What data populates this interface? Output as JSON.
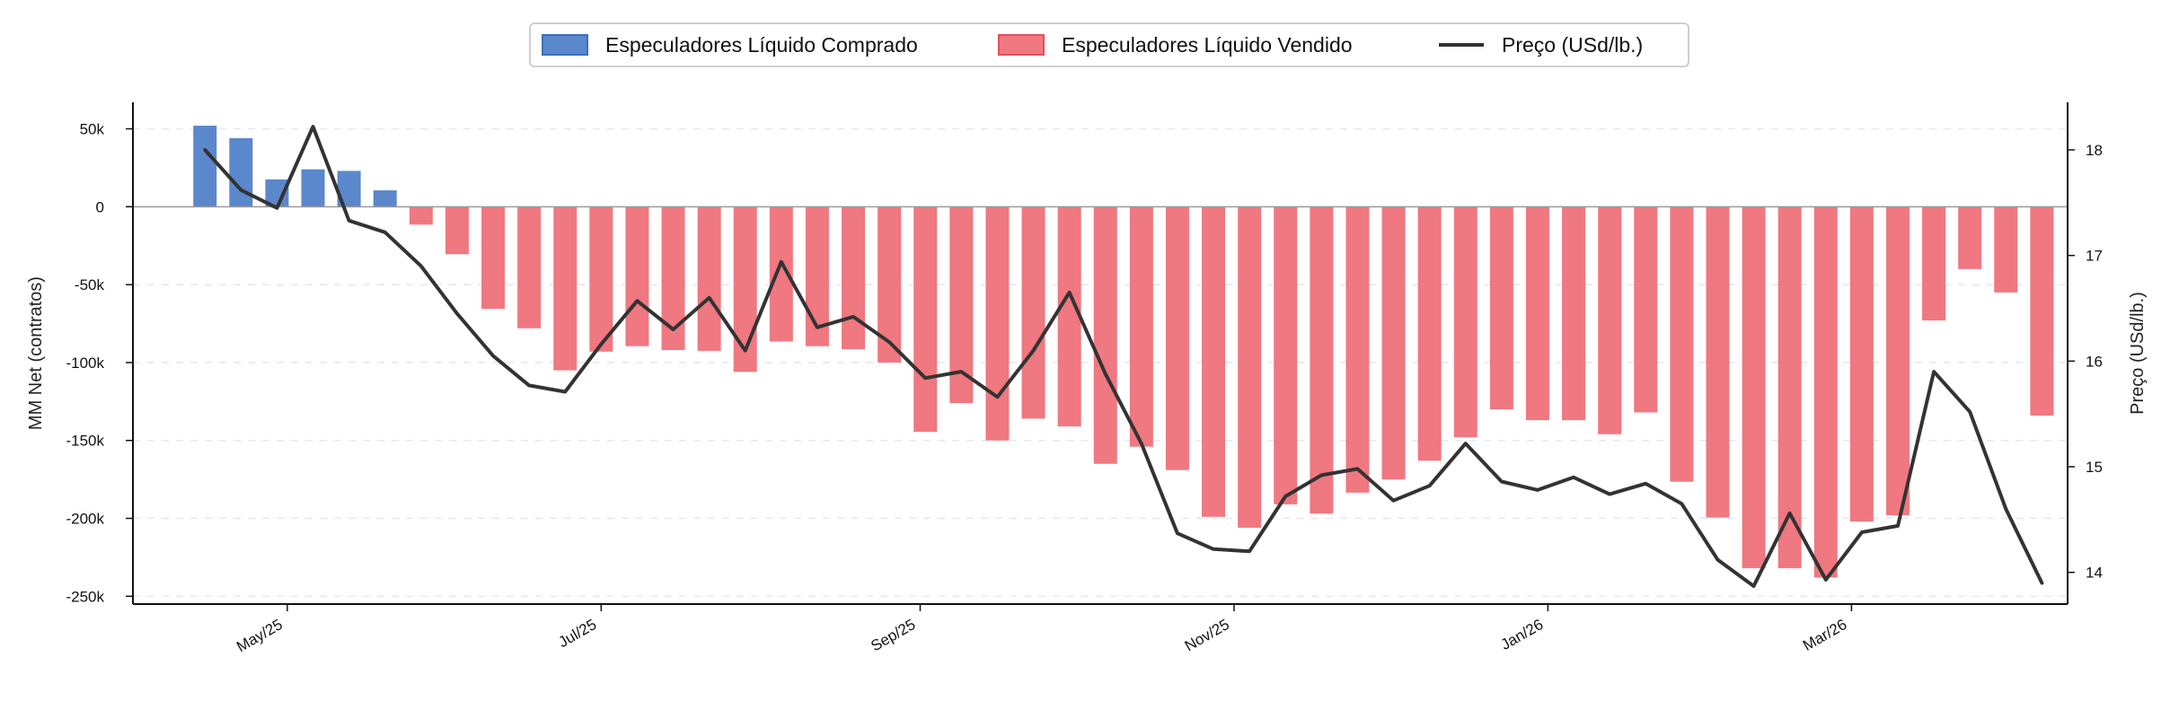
{
  "chart_data": {
    "type": "bar",
    "x": [
      "2025-04-15",
      "2025-04-22",
      "2025-04-29",
      "2025-05-06",
      "2025-05-13",
      "2025-05-20",
      "2025-05-27",
      "2025-06-03",
      "2025-06-10",
      "2025-06-17",
      "2025-06-24",
      "2025-07-01",
      "2025-07-08",
      "2025-07-15",
      "2025-07-22",
      "2025-07-29",
      "2025-08-05",
      "2025-08-12",
      "2025-08-19",
      "2025-08-26",
      "2025-09-02",
      "2025-09-09",
      "2025-09-16",
      "2025-09-23",
      "2025-09-30",
      "2025-10-07",
      "2025-10-14",
      "2025-10-21",
      "2025-10-28",
      "2025-11-04",
      "2025-11-11",
      "2025-11-18",
      "2025-11-25",
      "2025-12-02",
      "2025-12-09",
      "2025-12-16",
      "2025-12-23",
      "2025-12-30",
      "2026-01-06",
      "2026-01-13",
      "2026-01-20",
      "2026-01-27",
      "2026-02-03",
      "2026-02-10",
      "2026-02-17",
      "2026-02-24",
      "2026-03-03",
      "2026-03-10",
      "2026-03-17",
      "2026-03-24",
      "2026-03-31",
      "2026-04-07"
    ],
    "series": [
      {
        "name": "MM Net",
        "values": [
          52000,
          44000,
          17500,
          24000,
          23000,
          10500,
          -11500,
          -30500,
          -65500,
          -78000,
          -105000,
          -93000,
          -89500,
          -92000,
          -92500,
          -106000,
          -86500,
          -89500,
          -91500,
          -100000,
          -144500,
          -126000,
          -150000,
          -136000,
          -141000,
          -165000,
          -154000,
          -169000,
          -199000,
          -206000,
          -191000,
          -197000,
          -183500,
          -175000,
          -163000,
          -148000,
          -130000,
          -137000,
          -137000,
          -146000,
          -132000,
          -176500,
          -199500,
          -232000,
          -232000,
          -238000,
          -202000,
          -198000,
          -73000,
          -40000,
          -55000,
          -134000
        ]
      },
      {
        "name": "Preço (USd/lb.)",
        "axis": "right",
        "values": [
          18.0,
          17.62,
          17.45,
          18.22,
          17.33,
          17.22,
          16.9,
          16.45,
          16.05,
          15.77,
          15.71,
          16.16,
          16.57,
          16.3,
          16.6,
          16.1,
          16.94,
          16.32,
          16.42,
          16.18,
          15.84,
          15.9,
          15.66,
          16.1,
          16.65,
          15.88,
          15.22,
          14.37,
          14.22,
          14.2,
          14.72,
          14.92,
          14.98,
          14.68,
          14.82,
          15.22,
          14.86,
          14.78,
          14.9,
          14.74,
          14.84,
          14.65,
          14.12,
          13.87,
          14.56,
          13.93,
          14.38,
          14.44,
          15.9,
          15.52,
          14.6,
          13.9
        ]
      }
    ],
    "legend": {
      "position": "top-center",
      "items": [
        {
          "label": "Especuladores Líquido Comprado",
          "type": "bar",
          "color": "#5B87CC"
        },
        {
          "label": "Especuladores Líquido Vendido",
          "type": "bar",
          "color": "#F07880"
        },
        {
          "label": "Preço (USd/lb.)",
          "type": "line",
          "color": "#333333"
        }
      ]
    },
    "colors": {
      "long": "#5B87CC",
      "short": "#F07880",
      "price": "#333333"
    },
    "ylabel": "MM Net (contratos)",
    "ylabel_right": "Preço (USd/lb.)",
    "ylim": [
      -255000,
      67000
    ],
    "ylim_right": [
      13.7,
      18.45
    ],
    "yticks": [
      {
        "value": 50000,
        "label": "50k"
      },
      {
        "value": 0,
        "label": "0"
      },
      {
        "value": -50000,
        "label": "-50k"
      },
      {
        "value": -100000,
        "label": "-100k"
      },
      {
        "value": -150000,
        "label": "-150k"
      },
      {
        "value": -200000,
        "label": "-200k"
      },
      {
        "value": -250000,
        "label": "-250k"
      }
    ],
    "yticks_right": [
      {
        "value": 18,
        "label": "18"
      },
      {
        "value": 17,
        "label": "17"
      },
      {
        "value": 16,
        "label": "16"
      },
      {
        "value": 15,
        "label": "15"
      },
      {
        "value": 14,
        "label": "14"
      }
    ],
    "xlim": [
      "2025-04-01",
      "2026-04-12"
    ],
    "xticks": [
      {
        "value": "2025-05-01",
        "label": "May/25"
      },
      {
        "value": "2025-07-01",
        "label": "Jul/25"
      },
      {
        "value": "2025-09-01",
        "label": "Sep/25"
      },
      {
        "value": "2025-11-01",
        "label": "Nov/25"
      },
      {
        "value": "2026-01-01",
        "label": "Jan/26"
      },
      {
        "value": "2026-03-01",
        "label": "Mar/26"
      }
    ],
    "grid": "horizontal-dashed"
  }
}
